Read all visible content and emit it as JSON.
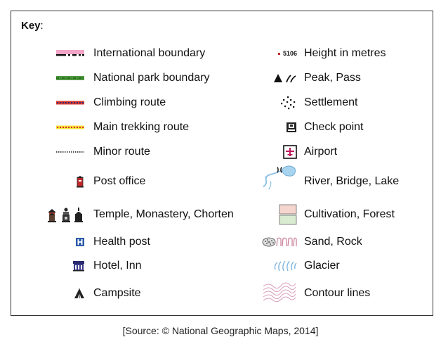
{
  "key": {
    "title": "Key",
    "title_suffix": ":",
    "left_items": [
      {
        "label": "International boundary",
        "icon": "international-boundary-line"
      },
      {
        "label": "National park boundary",
        "icon": "national-park-boundary-line"
      },
      {
        "label": "Climbing route",
        "icon": "climbing-route-line"
      },
      {
        "label": "Main trekking route",
        "icon": "main-trekking-route-line"
      },
      {
        "label": "Minor route",
        "icon": "minor-route-line"
      },
      {
        "label": "Post office",
        "icon": "post-office-icon"
      },
      {
        "label": "Temple, Monastery, Chorten",
        "icon": "temple-monastery-chorten-icons"
      },
      {
        "label": "Health post",
        "icon": "health-post-icon"
      },
      {
        "label": "Hotel, Inn",
        "icon": "hotel-inn-icon"
      },
      {
        "label": "Campsite",
        "icon": "campsite-icon"
      }
    ],
    "right_items": [
      {
        "label": "Height in metres",
        "icon": "height-marker-icon",
        "symbol_text": "5106"
      },
      {
        "label": "Peak, Pass",
        "icon": "peak-pass-icons"
      },
      {
        "label": "Settlement",
        "icon": "settlement-dots-icon"
      },
      {
        "label": "Check point",
        "icon": "check-point-icon"
      },
      {
        "label": "Airport",
        "icon": "airport-icon"
      },
      {
        "label": "River, Bridge, Lake",
        "icon": "river-bridge-lake-icon"
      },
      {
        "label": "Cultivation, Forest",
        "icon": "cultivation-forest-swatches"
      },
      {
        "label": "Sand, Rock",
        "icon": "sand-rock-pattern"
      },
      {
        "label": "Glacier",
        "icon": "glacier-icon"
      },
      {
        "label": "Contour lines",
        "icon": "contour-lines-icon"
      }
    ]
  },
  "colors": {
    "international_boundary_pink": "#f2a5c7",
    "national_park_green": "#4e9a3e",
    "climbing_route_red": "#d83a2a",
    "trekking_route_yellow": "#f4e23a",
    "airport_magenta": "#c0175d",
    "water_blue": "#8cc3e6",
    "cultivation_pink": "#f6d5cf",
    "forest_green": "#d9ecd2",
    "contour_pink": "#d79bb8",
    "glacier_blue": "#7fb4de"
  },
  "source": "[Source: © National Geographic Maps, 2014]"
}
